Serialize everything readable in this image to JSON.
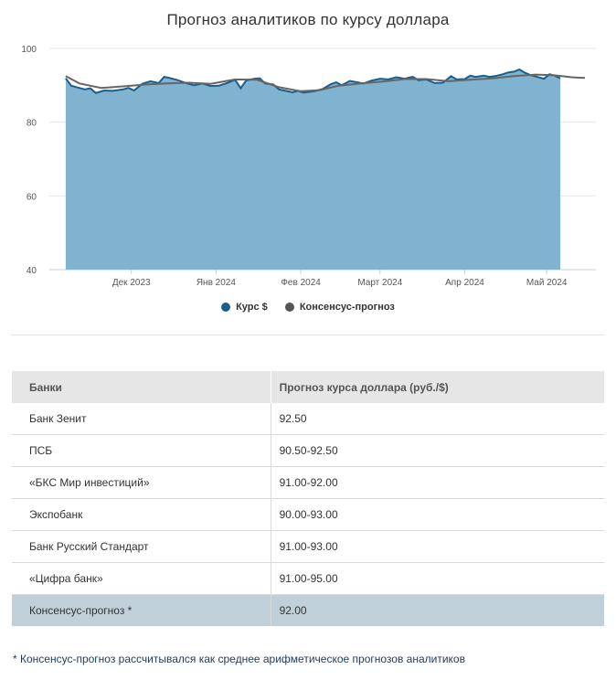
{
  "chart_data": {
    "type": "area",
    "title": "Прогноз аналитиков по курсу доллара",
    "ylim": [
      40,
      100
    ],
    "y_ticks": [
      "100",
      "80",
      "60",
      "40"
    ],
    "x_tick_labels": [
      "Дек 2023",
      "Янв 2024",
      "Фев 2024",
      "Март 2024",
      "Апр 2024",
      "Май 2024"
    ],
    "grid": true,
    "legend_position": "bottom",
    "series": [
      {
        "name": "Курс $",
        "color": "#7fb3cf",
        "line_color": "#1a5f8c",
        "points": [
          [
            "2023-11-07",
            91.9
          ],
          [
            "2023-11-09",
            89.9
          ],
          [
            "2023-11-11",
            89.5
          ],
          [
            "2023-11-14",
            88.9
          ],
          [
            "2023-11-16",
            89.2
          ],
          [
            "2023-11-18",
            87.9
          ],
          [
            "2023-11-21",
            88.6
          ],
          [
            "2023-11-24",
            88.5
          ],
          [
            "2023-11-28",
            88.9
          ],
          [
            "2023-11-30",
            89.3
          ],
          [
            "2023-12-02",
            88.6
          ],
          [
            "2023-12-05",
            90.4
          ],
          [
            "2023-12-08",
            91.1
          ],
          [
            "2023-12-11",
            90.6
          ],
          [
            "2023-12-13",
            92.3
          ],
          [
            "2023-12-15",
            92.0
          ],
          [
            "2023-12-18",
            91.4
          ],
          [
            "2023-12-21",
            90.6
          ],
          [
            "2023-12-24",
            90.0
          ],
          [
            "2023-12-27",
            90.5
          ],
          [
            "2023-12-30",
            89.8
          ],
          [
            "2024-01-02",
            89.9
          ],
          [
            "2024-01-05",
            90.6
          ],
          [
            "2024-01-08",
            91.5
          ],
          [
            "2024-01-10",
            89.2
          ],
          [
            "2024-01-12",
            91.3
          ],
          [
            "2024-01-15",
            91.8
          ],
          [
            "2024-01-17",
            91.9
          ],
          [
            "2024-01-19",
            90.5
          ],
          [
            "2024-01-22",
            90.2
          ],
          [
            "2024-01-24",
            88.9
          ],
          [
            "2024-01-26",
            88.6
          ],
          [
            "2024-01-29",
            88.1
          ],
          [
            "2024-01-31",
            88.5
          ],
          [
            "2024-02-02",
            88.0
          ],
          [
            "2024-02-06",
            88.4
          ],
          [
            "2024-02-09",
            89.0
          ],
          [
            "2024-02-12",
            90.3
          ],
          [
            "2024-02-14",
            90.8
          ],
          [
            "2024-02-16",
            90.0
          ],
          [
            "2024-02-19",
            91.2
          ],
          [
            "2024-02-21",
            90.9
          ],
          [
            "2024-02-24",
            90.5
          ],
          [
            "2024-02-27",
            91.3
          ],
          [
            "2024-03-01",
            91.8
          ],
          [
            "2024-03-04",
            91.6
          ],
          [
            "2024-03-07",
            92.2
          ],
          [
            "2024-03-10",
            91.8
          ],
          [
            "2024-03-13",
            92.3
          ],
          [
            "2024-03-15",
            91.4
          ],
          [
            "2024-03-18",
            91.6
          ],
          [
            "2024-03-21",
            90.6
          ],
          [
            "2024-03-24",
            90.7
          ],
          [
            "2024-03-27",
            92.5
          ],
          [
            "2024-03-29",
            91.6
          ],
          [
            "2024-04-01",
            91.7
          ],
          [
            "2024-04-03",
            92.6
          ],
          [
            "2024-04-05",
            92.3
          ],
          [
            "2024-04-08",
            92.6
          ],
          [
            "2024-04-10",
            92.3
          ],
          [
            "2024-04-12",
            92.5
          ],
          [
            "2024-04-15",
            93.0
          ],
          [
            "2024-04-17",
            93.5
          ],
          [
            "2024-04-19",
            93.7
          ],
          [
            "2024-04-21",
            94.3
          ],
          [
            "2024-04-23",
            93.4
          ],
          [
            "2024-04-25",
            92.8
          ],
          [
            "2024-04-27",
            92.4
          ],
          [
            "2024-04-30",
            91.8
          ],
          [
            "2024-05-02",
            93.0
          ],
          [
            "2024-05-04",
            92.6
          ],
          [
            "2024-05-06",
            91.9
          ]
        ]
      },
      {
        "name": "Консенсус-прогноз",
        "color": "#666666",
        "points": [
          [
            "2023-11-07",
            92.5
          ],
          [
            "2023-11-12",
            90.5
          ],
          [
            "2023-11-20",
            89.3
          ],
          [
            "2023-11-28",
            89.7
          ],
          [
            "2023-12-06",
            90.2
          ],
          [
            "2023-12-14",
            90.5
          ],
          [
            "2023-12-22",
            90.7
          ],
          [
            "2023-12-30",
            90.4
          ],
          [
            "2024-01-08",
            91.6
          ],
          [
            "2024-01-16",
            91.5
          ],
          [
            "2024-01-24",
            89.5
          ],
          [
            "2024-02-01",
            88.4
          ],
          [
            "2024-02-08",
            88.7
          ],
          [
            "2024-02-15",
            89.9
          ],
          [
            "2024-02-23",
            90.5
          ],
          [
            "2024-03-02",
            91.0
          ],
          [
            "2024-03-10",
            91.7
          ],
          [
            "2024-03-18",
            91.7
          ],
          [
            "2024-03-26",
            91.1
          ],
          [
            "2024-04-03",
            91.5
          ],
          [
            "2024-04-11",
            91.9
          ],
          [
            "2024-04-19",
            92.5
          ],
          [
            "2024-04-27",
            92.9
          ],
          [
            "2024-05-04",
            92.7
          ],
          [
            "2024-05-10",
            92.2
          ],
          [
            "2024-05-15",
            92.0
          ]
        ]
      }
    ]
  },
  "legend": {
    "items": [
      {
        "label": "Курс $",
        "color": "#1a5f8c"
      },
      {
        "label": "Консенсус-прогноз",
        "color": "#555555"
      }
    ]
  },
  "table": {
    "headers": [
      "Банки",
      "Прогноз курса доллара (руб./$)"
    ],
    "rows": [
      [
        "Банк Зенит",
        "92.50"
      ],
      [
        "ПСБ",
        "90.50-92.50"
      ],
      [
        "«БКС Мир инвестиций»",
        "91.00-92.00"
      ],
      [
        "Экспобанк",
        "90.00-93.00"
      ],
      [
        "Банк Русский Стандарт",
        "91.00-93.00"
      ],
      [
        "«Цифра банк»",
        "91.00-95.00"
      ]
    ],
    "summary": [
      "Консенсус-прогноз *",
      "92.00"
    ]
  },
  "footnote": "* Консенсус-прогноз рассчитывался как среднее арифметическое прогнозов аналитиков"
}
